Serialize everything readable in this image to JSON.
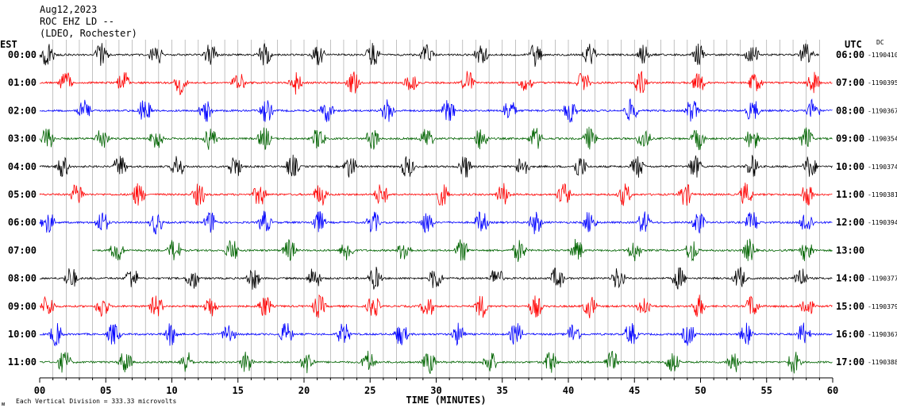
{
  "header": {
    "date": "Aug12,2023",
    "station": "ROC EHZ LD --",
    "network": "(LDEO, Rochester)"
  },
  "left_axis_title": "EST",
  "right_axis_title": "UTC",
  "dc_title": "DC",
  "footer_scale": "Each Vertical Division =  333.33 microvolts",
  "chart_data": {
    "type": "line",
    "xlabel": "TIME (MINUTES)",
    "xlim": [
      0,
      60
    ],
    "xticks": [
      "00",
      "05",
      "10",
      "15",
      "20",
      "25",
      "30",
      "35",
      "40",
      "45",
      "50",
      "55",
      "60"
    ],
    "grid": "vertical lines every minute",
    "colors": [
      "#000000",
      "#ff0000",
      "#0000ff",
      "#006400"
    ],
    "rows": [
      {
        "est": "00:00",
        "utc": "06:00",
        "dc": "-1190410",
        "start": 0,
        "end": 59
      },
      {
        "est": "01:00",
        "utc": "07:00",
        "dc": "-1190395",
        "start": 0,
        "end": 60
      },
      {
        "est": "02:00",
        "utc": "08:00",
        "dc": "-1190367",
        "start": 0,
        "end": 60
      },
      {
        "est": "03:00",
        "utc": "09:00",
        "dc": "-1190354",
        "start": 0,
        "end": 60
      },
      {
        "est": "04:00",
        "utc": "10:00",
        "dc": "-1190374",
        "start": 0,
        "end": 60
      },
      {
        "est": "05:00",
        "utc": "11:00",
        "dc": "-1190381",
        "start": 0,
        "end": 60
      },
      {
        "est": "06:00",
        "utc": "12:00",
        "dc": "-1190394",
        "start": 0,
        "end": 60
      },
      {
        "est": "07:00",
        "utc": "13:00",
        "dc": "",
        "start": 4,
        "end": 60
      },
      {
        "est": "08:00",
        "utc": "14:00",
        "dc": "-1190377",
        "start": 0,
        "end": 60
      },
      {
        "est": "09:00",
        "utc": "15:00",
        "dc": "-1190379",
        "start": 0,
        "end": 60
      },
      {
        "est": "10:00",
        "utc": "16:00",
        "dc": "-1190367",
        "start": 0,
        "end": 60
      },
      {
        "est": "11:00",
        "utc": "17:00",
        "dc": "-1190388",
        "start": 0,
        "end": 60
      }
    ]
  }
}
